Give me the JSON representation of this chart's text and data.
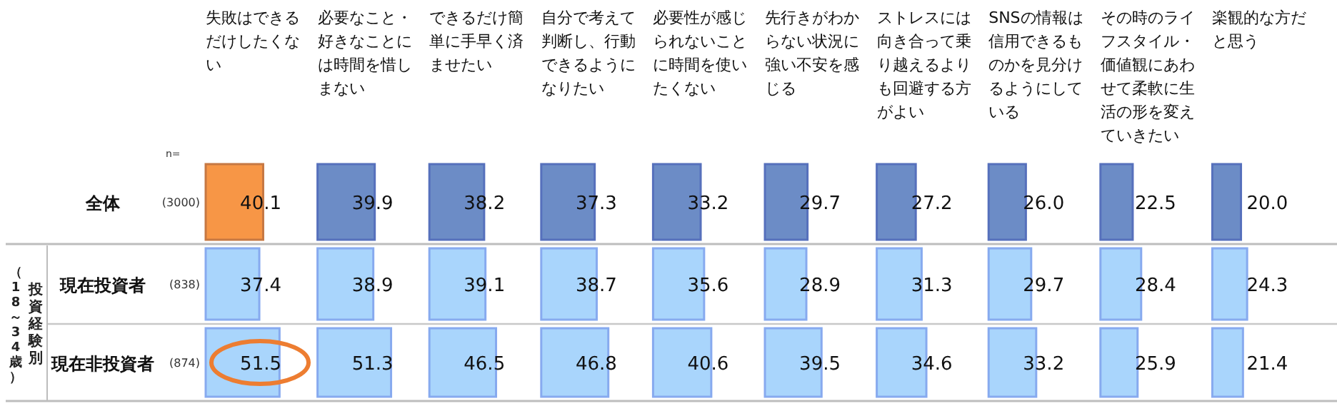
{
  "chart_data": [
    {
      "type": "bar",
      "orientation": "horizontal",
      "title": "失敗はできるだけしたくない",
      "categories": [
        "全体",
        "現在投資者",
        "現在非投資者"
      ],
      "values": [
        40.1,
        37.4,
        51.5
      ],
      "colors": [
        "#f79646",
        "#a9d5fc",
        "#a9d5fc"
      ],
      "data_labels": true,
      "tick_labels": "y",
      "annotations": [
        "n=",
        "(3000)",
        "(838)",
        "(874)",
        "（18～34歳）",
        "投資経験別"
      ]
    },
    {
      "type": "bar",
      "orientation": "horizontal",
      "title": "必要なこと・好きなことには時間を惜しまない",
      "categories": [
        null,
        null,
        null
      ],
      "values": [
        39.9,
        38.9,
        51.3
      ],
      "colors": [
        "#6c8cc6",
        "#a9d5fc",
        "#a9d5fc"
      ],
      "data_labels": true,
      "tick_labels": false
    },
    {
      "type": "bar",
      "orientation": "horizontal",
      "title": "できるだけ簡単に手早く済ませたい",
      "categories": [
        null,
        null,
        null
      ],
      "values": [
        38.2,
        39.1,
        46.5
      ],
      "colors": [
        "#6c8cc6",
        "#a9d5fc",
        "#a9d5fc"
      ],
      "data_labels": true,
      "tick_labels": false
    },
    {
      "type": "bar",
      "orientation": "horizontal",
      "title": "自分で考えて判断し、行動できるようになりたい",
      "categories": [
        null,
        null,
        null
      ],
      "values": [
        37.3,
        38.7,
        46.8
      ],
      "colors": [
        "#6c8cc6",
        "#a9d5fc",
        "#a9d5fc"
      ],
      "data_labels": true,
      "tick_labels": false
    },
    {
      "type": "bar",
      "orientation": "horizontal",
      "title": "必要性が感じられないことに時間を使いたくない",
      "categories": [
        null,
        null,
        null
      ],
      "values": [
        33.2,
        35.6,
        40.6
      ],
      "colors": [
        "#6c8cc6",
        "#a9d5fc",
        "#a9d5fc"
      ],
      "data_labels": true,
      "tick_labels": false
    },
    {
      "type": "bar",
      "orientation": "horizontal",
      "title": "先行きがわからない状況に強い不安を感じる",
      "categories": [
        null,
        null,
        null
      ],
      "values": [
        29.7,
        28.9,
        39.5
      ],
      "colors": [
        "#6c8cc6",
        "#a9d5fc",
        "#a9d5fc"
      ],
      "data_labels": true,
      "tick_labels": false
    },
    {
      "type": "bar",
      "orientation": "horizontal",
      "title": "ストレスには向き合って乗り越えるよりも回避する方がよい",
      "categories": [
        null,
        null,
        null
      ],
      "values": [
        27.2,
        31.3,
        34.6
      ],
      "colors": [
        "#6c8cc6",
        "#a9d5fc",
        "#a9d5fc"
      ],
      "data_labels": true,
      "tick_labels": false
    },
    {
      "type": "bar",
      "orientation": "horizontal",
      "title": "SNSの情報は信用できるものかを見分けるようにしている",
      "categories": [
        null,
        null,
        null
      ],
      "values": [
        26.0,
        29.7,
        33.2
      ],
      "value_labels": [
        "26.0",
        "29.7",
        "33.2"
      ],
      "colors": [
        "#6c8cc6",
        "#a9d5fc",
        "#a9d5fc"
      ],
      "data_labels": true,
      "tick_labels": false
    },
    {
      "type": "bar",
      "orientation": "horizontal",
      "title": "その時のライフスタイル・価値観にあわせて柔軟に生活の形を変えていきたい",
      "categories": [
        null,
        null,
        null
      ],
      "values": [
        22.5,
        28.4,
        25.9
      ],
      "colors": [
        "#6c8cc6",
        "#a9d5fc",
        "#a9d5fc"
      ],
      "data_labels": true,
      "tick_labels": false
    },
    {
      "type": "bar",
      "orientation": "horizontal",
      "title": "楽観的な方だと思う",
      "categories": [
        null,
        null,
        null
      ],
      "values": [
        20.0,
        24.3,
        21.4
      ],
      "value_labels": [
        "20.0",
        "24.3",
        "21.4"
      ],
      "colors": [
        "#6c8cc6",
        "#a9d5fc",
        "#a9d5fc"
      ],
      "data_labels": true,
      "tick_labels": false
    }
  ]
}
